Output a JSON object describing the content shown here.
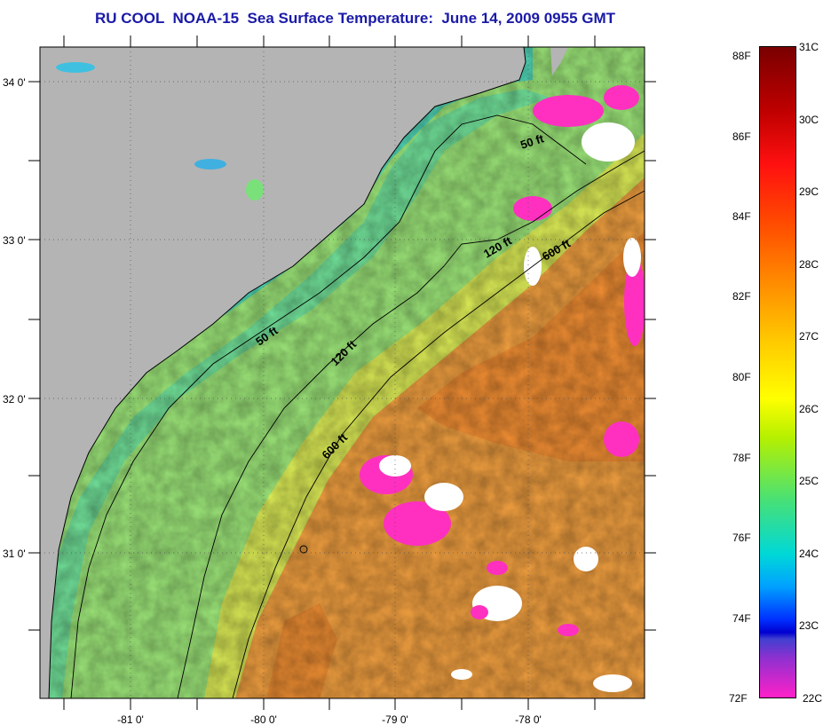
{
  "title": "RU COOL  NOAA-15  Sea Surface Temperature:  June 14, 2009 0955 GMT",
  "map": {
    "latitude_labels": [
      "34 0'",
      "33 0'",
      "32 0'",
      "31 0'"
    ],
    "longitude_labels": [
      "-81 0'",
      "-80 0'",
      "-79 0'",
      "-78 0'"
    ],
    "gridlines": "dotted",
    "land_color": "#b4b4b4",
    "cloud_color": "#ffffff",
    "contours": [
      {
        "label": "50 ft",
        "occurrences": 2
      },
      {
        "label": "120 ft",
        "occurrences": 2
      },
      {
        "label": "600 ft",
        "occurrences": 2
      }
    ],
    "contour_labels": [
      "50 ft",
      "120 ft",
      "600 ft",
      "50 ft",
      "120 ft",
      "600 ft"
    ]
  },
  "colorbar": {
    "fahrenheit_labels": [
      "88F",
      "86F",
      "84F",
      "82F",
      "80F",
      "78F",
      "76F",
      "74F",
      "72F"
    ],
    "celsius_labels": [
      "31C",
      "30C",
      "29C",
      "28C",
      "27C",
      "26C",
      "25C",
      "24C",
      "23C",
      "22C"
    ],
    "range_celsius": [
      22,
      31
    ],
    "colors": {
      "top": "#7a0000",
      "warm": "#ff8a00",
      "mid": "#ffff00",
      "cool": "#00d8d8",
      "cold": "#0030ff",
      "bottom": "#ff20c8"
    }
  }
}
